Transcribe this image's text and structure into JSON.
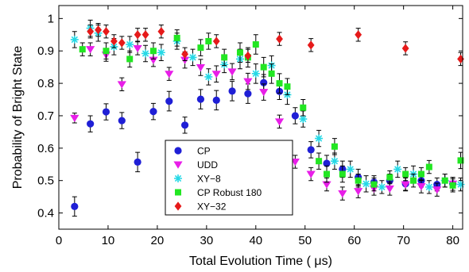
{
  "chart_data": {
    "type": "scatter",
    "title": "",
    "xlabel": "Total Evolution Time ( μs)",
    "ylabel": "Probability of Bright State",
    "xlim": [
      0,
      82
    ],
    "ylim": [
      0.35,
      1.04
    ],
    "xticks": [
      "0",
      "10",
      "20",
      "30",
      "40",
      "50",
      "60",
      "70",
      "80"
    ],
    "yticks": [
      "0.4",
      "0.5",
      "0.6",
      "0.7",
      "0.8",
      "0.9",
      "1"
    ],
    "grid": false,
    "legend_position": "lower-center",
    "series": [
      {
        "name": "CP",
        "marker": "circle",
        "color": "#1f1fd6",
        "points": [
          [
            3.2,
            0.42,
            0.03
          ],
          [
            6.4,
            0.675,
            0.025
          ],
          [
            9.6,
            0.712,
            0.025
          ],
          [
            12.8,
            0.685,
            0.025
          ],
          [
            16,
            0.557,
            0.03
          ],
          [
            19.2,
            0.713,
            0.025
          ],
          [
            22.4,
            0.745,
            0.03
          ],
          [
            25.6,
            0.671,
            0.025
          ],
          [
            28.8,
            0.751,
            0.03
          ],
          [
            32,
            0.748,
            0.03
          ],
          [
            35.2,
            0.776,
            0.03
          ],
          [
            38.4,
            0.768,
            0.03
          ],
          [
            41.6,
            0.802,
            0.025
          ],
          [
            44.8,
            0.775,
            0.025
          ],
          [
            48,
            0.7,
            0.025
          ],
          [
            51.2,
            0.595,
            0.025
          ],
          [
            54.4,
            0.553,
            0.025
          ],
          [
            57.6,
            0.535,
            0.025
          ],
          [
            60.8,
            0.51,
            0.025
          ],
          [
            64,
            0.495,
            0.02
          ],
          [
            67.2,
            0.5,
            0.02
          ],
          [
            70.4,
            0.49,
            0.02
          ],
          [
            73.6,
            0.5,
            0.02
          ],
          [
            76.8,
            0.488,
            0.02
          ],
          [
            80,
            0.49,
            0.02
          ]
        ]
      },
      {
        "name": "UDD",
        "marker": "triangle-down",
        "color": "#e81ee8",
        "points": [
          [
            3.2,
            0.693,
            0.015
          ],
          [
            6.4,
            0.905,
            0.02
          ],
          [
            9.6,
            0.888,
            0.02
          ],
          [
            12.8,
            0.797,
            0.02
          ],
          [
            16,
            0.908,
            0.02
          ],
          [
            19.2,
            0.872,
            0.02
          ],
          [
            22.4,
            0.829,
            0.02
          ],
          [
            25.6,
            0.872,
            0.025
          ],
          [
            28.8,
            0.849,
            0.025
          ],
          [
            32,
            0.829,
            0.025
          ],
          [
            35.2,
            0.836,
            0.025
          ],
          [
            38.4,
            0.806,
            0.025
          ],
          [
            41.6,
            0.773,
            0.025
          ],
          [
            44.8,
            0.682,
            0.02
          ],
          [
            48,
            0.558,
            0.02
          ],
          [
            51.2,
            0.52,
            0.02
          ],
          [
            54.4,
            0.488,
            0.02
          ],
          [
            57.6,
            0.46,
            0.02
          ],
          [
            60.8,
            0.467,
            0.02
          ],
          [
            64,
            0.475,
            0.02
          ],
          [
            67.2,
            0.475,
            0.02
          ],
          [
            70.4,
            0.488,
            0.02
          ],
          [
            73.6,
            0.482,
            0.02
          ],
          [
            76.8,
            0.472,
            0.02
          ],
          [
            80,
            0.49,
            0.02
          ]
        ]
      },
      {
        "name": "XY−8",
        "marker": "asterisk",
        "color": "#26d9e6",
        "points": [
          [
            3.2,
            0.935,
            0.025
          ],
          [
            6.4,
            0.97,
            0.025
          ],
          [
            8,
            0.955,
            0.025
          ],
          [
            11.2,
            0.913,
            0.025
          ],
          [
            14.4,
            0.92,
            0.025
          ],
          [
            17.6,
            0.892,
            0.025
          ],
          [
            20.8,
            0.895,
            0.025
          ],
          [
            24,
            0.93,
            0.025
          ],
          [
            27.2,
            0.88,
            0.025
          ],
          [
            30.4,
            0.82,
            0.025
          ],
          [
            33.6,
            0.858,
            0.025
          ],
          [
            36.8,
            0.875,
            0.03
          ],
          [
            40,
            0.83,
            0.03
          ],
          [
            43.2,
            0.855,
            0.03
          ],
          [
            46.4,
            0.765,
            0.03
          ],
          [
            49.6,
            0.69,
            0.025
          ],
          [
            52.8,
            0.63,
            0.025
          ],
          [
            56,
            0.56,
            0.025
          ],
          [
            59.2,
            0.535,
            0.025
          ],
          [
            62.4,
            0.49,
            0.025
          ],
          [
            65.6,
            0.48,
            0.02
          ],
          [
            68.8,
            0.535,
            0.025
          ],
          [
            72,
            0.52,
            0.025
          ],
          [
            75.2,
            0.48,
            0.02
          ],
          [
            78.4,
            0.5,
            0.02
          ],
          [
            81.6,
            0.488,
            0.02
          ]
        ]
      },
      {
        "name": "CP Robust 180",
        "marker": "square",
        "color": "#22e622",
        "points": [
          [
            4.8,
            0.905,
            0.02
          ],
          [
            9.6,
            0.9,
            0.025
          ],
          [
            14.4,
            0.875,
            0.025
          ],
          [
            19.2,
            0.9,
            0.025
          ],
          [
            24,
            0.94,
            0.025
          ],
          [
            28.8,
            0.91,
            0.025
          ],
          [
            30.4,
            0.93,
            0.025
          ],
          [
            33.6,
            0.88,
            0.025
          ],
          [
            36.8,
            0.895,
            0.03
          ],
          [
            38.4,
            0.88,
            0.03
          ],
          [
            40,
            0.92,
            0.03
          ],
          [
            41.6,
            0.85,
            0.03
          ],
          [
            43.2,
            0.83,
            0.03
          ],
          [
            44.8,
            0.8,
            0.03
          ],
          [
            46.4,
            0.79,
            0.025
          ],
          [
            49.6,
            0.725,
            0.025
          ],
          [
            52.8,
            0.56,
            0.025
          ],
          [
            54.4,
            0.52,
            0.025
          ],
          [
            56,
            0.605,
            0.025
          ],
          [
            57.6,
            0.52,
            0.025
          ],
          [
            60.8,
            0.5,
            0.02
          ],
          [
            64,
            0.488,
            0.02
          ],
          [
            67.2,
            0.51,
            0.02
          ],
          [
            70.4,
            0.52,
            0.02
          ],
          [
            72,
            0.5,
            0.02
          ],
          [
            73.6,
            0.52,
            0.02
          ],
          [
            75.2,
            0.542,
            0.02
          ],
          [
            78.4,
            0.5,
            0.02
          ],
          [
            80,
            0.485,
            0.02
          ],
          [
            81.6,
            0.562,
            0.025
          ]
        ]
      },
      {
        "name": "XY−32",
        "marker": "diamond",
        "color": "#e61a1a",
        "points": [
          [
            6.4,
            0.96,
            0.02
          ],
          [
            8,
            0.965,
            0.02
          ],
          [
            9.6,
            0.96,
            0.02
          ],
          [
            11.2,
            0.93,
            0.02
          ],
          [
            12.8,
            0.925,
            0.02
          ],
          [
            16,
            0.95,
            0.02
          ],
          [
            17.6,
            0.95,
            0.02
          ],
          [
            20.8,
            0.96,
            0.02
          ],
          [
            25.6,
            0.89,
            0.02
          ],
          [
            32,
            0.93,
            0.02
          ],
          [
            38.4,
            0.885,
            0.02
          ],
          [
            44.8,
            0.937,
            0.02
          ],
          [
            51.2,
            0.918,
            0.02
          ],
          [
            60.8,
            0.95,
            0.02
          ],
          [
            70.4,
            0.908,
            0.02
          ],
          [
            81.6,
            0.875,
            0.02
          ]
        ]
      }
    ]
  }
}
